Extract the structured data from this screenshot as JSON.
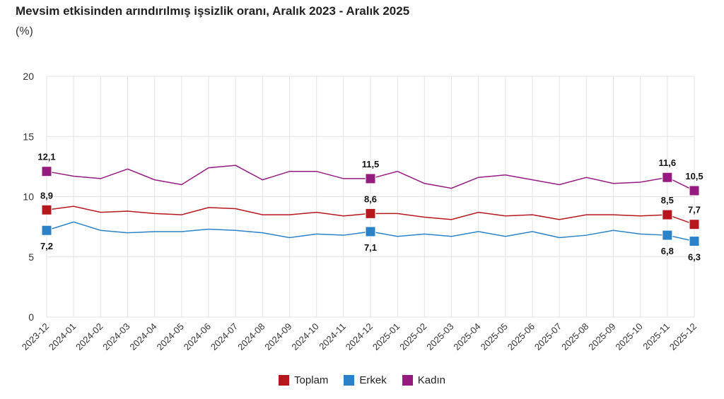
{
  "chart_data": {
    "type": "line",
    "title": "Mevsim etkisinden arındırılmış işsizlik oranı, Aralık 2023 - Aralık 2025",
    "subtitle": "(%)",
    "ylim": [
      0,
      20
    ],
    "yticks": [
      "0",
      "5",
      "10",
      "15",
      "20"
    ],
    "grid": true,
    "legend": "bottom",
    "categories": [
      "2023-12",
      "2024-01",
      "2024-02",
      "2024-03",
      "2024-04",
      "2024-05",
      "2024-06",
      "2024-07",
      "2024-08",
      "2024-09",
      "2024-10",
      "2024-11",
      "2024-12",
      "2025-01",
      "2025-02",
      "2025-03",
      "2025-04",
      "2025-05",
      "2025-06",
      "2025-07",
      "2025-08",
      "2025-09",
      "2025-10",
      "2025-11",
      "2025-12"
    ],
    "series": [
      {
        "name": "Toplam",
        "color": "#b5171c",
        "values": [
          8.9,
          9.2,
          8.7,
          8.8,
          8.6,
          8.5,
          9.1,
          9.0,
          8.5,
          8.5,
          8.7,
          8.4,
          8.6,
          8.6,
          8.3,
          8.1,
          8.7,
          8.4,
          8.5,
          8.1,
          8.5,
          8.5,
          8.4,
          8.5,
          7.7
        ],
        "labels": {
          "0": "8,9",
          "12": "8,6",
          "23": "8,5",
          "24": "7,7"
        },
        "label_pos": "above"
      },
      {
        "name": "Erkek",
        "color": "#2b82c9",
        "values": [
          7.2,
          7.9,
          7.2,
          7.0,
          7.1,
          7.1,
          7.3,
          7.2,
          7.0,
          6.6,
          6.9,
          6.8,
          7.1,
          6.7,
          6.9,
          6.7,
          7.1,
          6.7,
          7.1,
          6.6,
          6.8,
          7.2,
          6.9,
          6.8,
          6.3
        ],
        "labels": {
          "0": "7,2",
          "12": "7,1",
          "23": "6,8",
          "24": "6,3"
        },
        "label_pos": "below"
      },
      {
        "name": "Kadın",
        "color": "#951b81",
        "values": [
          12.1,
          11.7,
          11.5,
          12.3,
          11.4,
          11.0,
          12.4,
          12.6,
          11.4,
          12.1,
          12.1,
          11.5,
          11.5,
          12.1,
          11.1,
          10.7,
          11.6,
          11.8,
          11.4,
          11.0,
          11.6,
          11.1,
          11.2,
          11.6,
          10.5
        ],
        "labels": {
          "0": "12,1",
          "12": "11,5",
          "23": "11,6",
          "24": "10,5"
        },
        "label_pos": "above"
      }
    ]
  }
}
